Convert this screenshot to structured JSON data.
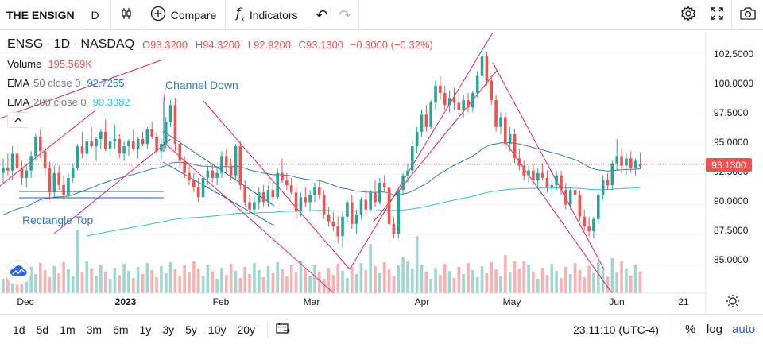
{
  "toolbar": {
    "symbol": "THE ENSIGN",
    "interval": "D",
    "compare_label": "Compare",
    "indicators_label": "Indicators",
    "icons": [
      "bar-chart-type-icon",
      "plus-circle-icon",
      "fx-icon",
      "undo-icon",
      "redo-icon",
      "gear-icon",
      "fullscreen-icon",
      "camera-icon"
    ]
  },
  "legend": {
    "symbol": "ENSG",
    "interval": "1D",
    "exchange": "NASDAQ",
    "o_label": "O",
    "o_value": "93.3200",
    "h_label": "H",
    "h_value": "94.3200",
    "l_label": "L",
    "l_value": "92.9200",
    "c_label": "C",
    "c_value": "93.1300",
    "change": "−0.3000 (−0.32%)",
    "volume_label": "Volume",
    "volume_value": "195.569K",
    "ema50_label": "EMA",
    "ema50_params": "50 close 0",
    "ema50_value": "92.7255",
    "ema200_label": "EMA",
    "ema200_params": "200 close 0",
    "ema200_value": "90.3082"
  },
  "annotations": {
    "channel_down": "Channel Down",
    "rectangle_top": "Rectangle Top"
  },
  "price_axis": {
    "ticks": [
      "102.5000",
      "100.0000",
      "97.5000",
      "95.0000",
      "92.5000",
      "90.0000",
      "87.5000",
      "85.0000"
    ],
    "last_price": "93.1300"
  },
  "time_axis": {
    "ticks": [
      "Dec",
      "2023",
      "Feb",
      "Mar",
      "Apr",
      "May",
      "Jun",
      "21"
    ]
  },
  "bottom": {
    "ranges": [
      "1d",
      "5d",
      "1m",
      "3m",
      "6m",
      "1y",
      "3y",
      "5y",
      "10y",
      "20y"
    ],
    "time": "23:11:10 (UTC-4)",
    "percent": "%",
    "log": "log",
    "auto": "auto"
  },
  "colors": {
    "up": "#26a69a",
    "down": "#ef5350",
    "ema50": "#2a7fc1",
    "ema200": "#26c6da",
    "pattern_pink": "#e91e63",
    "pattern_blue": "#1565c0",
    "accent": "#2962ff"
  },
  "chart_data": {
    "type": "candlestick",
    "y_range": [
      82.7,
      104.3
    ],
    "last_close": 93.13,
    "candles_approx": [
      {
        "o": 92.6,
        "h": 93.8,
        "l": 91.8,
        "c": 93.0
      },
      {
        "o": 93.0,
        "h": 94.2,
        "l": 92.4,
        "c": 92.8
      },
      {
        "o": 92.8,
        "h": 94.8,
        "l": 92.0,
        "c": 94.2
      },
      {
        "o": 94.2,
        "h": 95.0,
        "l": 92.6,
        "c": 93.0
      },
      {
        "o": 93.0,
        "h": 93.6,
        "l": 91.6,
        "c": 92.2
      },
      {
        "o": 92.2,
        "h": 93.4,
        "l": 91.4,
        "c": 92.8
      },
      {
        "o": 92.8,
        "h": 94.4,
        "l": 92.2,
        "c": 94.0
      },
      {
        "o": 94.0,
        "h": 95.8,
        "l": 93.6,
        "c": 95.6
      },
      {
        "o": 95.6,
        "h": 96.2,
        "l": 93.8,
        "c": 94.4
      },
      {
        "o": 94.4,
        "h": 94.8,
        "l": 92.4,
        "c": 93.0
      },
      {
        "o": 93.0,
        "h": 93.5,
        "l": 90.4,
        "c": 91.0
      },
      {
        "o": 91.0,
        "h": 93.2,
        "l": 90.6,
        "c": 92.6
      },
      {
        "o": 92.6,
        "h": 93.2,
        "l": 91.2,
        "c": 91.6
      },
      {
        "o": 91.6,
        "h": 92.4,
        "l": 90.4,
        "c": 90.8
      },
      {
        "o": 90.8,
        "h": 92.6,
        "l": 90.6,
        "c": 92.2
      },
      {
        "o": 92.2,
        "h": 93.4,
        "l": 91.8,
        "c": 93.0
      },
      {
        "o": 93.0,
        "h": 95.0,
        "l": 92.8,
        "c": 94.8
      },
      {
        "o": 94.8,
        "h": 96.0,
        "l": 93.8,
        "c": 94.2
      },
      {
        "o": 94.2,
        "h": 95.4,
        "l": 93.4,
        "c": 95.2
      },
      {
        "o": 95.2,
        "h": 96.4,
        "l": 94.6,
        "c": 94.8
      },
      {
        "o": 94.8,
        "h": 95.6,
        "l": 93.6,
        "c": 95.4
      },
      {
        "o": 95.4,
        "h": 96.2,
        "l": 94.6,
        "c": 96.0
      },
      {
        "o": 96.0,
        "h": 97.0,
        "l": 94.4,
        "c": 94.6
      },
      {
        "o": 94.6,
        "h": 95.6,
        "l": 94.0,
        "c": 95.2
      },
      {
        "o": 95.2,
        "h": 96.6,
        "l": 94.6,
        "c": 95.4
      },
      {
        "o": 95.4,
        "h": 95.8,
        "l": 93.8,
        "c": 94.2
      },
      {
        "o": 94.2,
        "h": 95.2,
        "l": 93.6,
        "c": 94.8
      },
      {
        "o": 94.8,
        "h": 95.4,
        "l": 94.0,
        "c": 95.2
      },
      {
        "o": 95.2,
        "h": 96.2,
        "l": 94.4,
        "c": 94.6
      },
      {
        "o": 94.6,
        "h": 95.6,
        "l": 93.8,
        "c": 95.4
      },
      {
        "o": 95.4,
        "h": 96.0,
        "l": 94.8,
        "c": 95.0
      },
      {
        "o": 95.0,
        "h": 96.4,
        "l": 94.6,
        "c": 96.2
      },
      {
        "o": 96.2,
        "h": 96.8,
        "l": 95.4,
        "c": 95.6
      },
      {
        "o": 95.6,
        "h": 96.0,
        "l": 94.2,
        "c": 94.4
      },
      {
        "o": 94.4,
        "h": 95.4,
        "l": 93.6,
        "c": 95.0
      },
      {
        "o": 95.0,
        "h": 97.2,
        "l": 94.6,
        "c": 96.8
      },
      {
        "o": 96.8,
        "h": 98.6,
        "l": 96.4,
        "c": 98.2
      },
      {
        "o": 98.2,
        "h": 98.8,
        "l": 94.4,
        "c": 95.0
      },
      {
        "o": 95.0,
        "h": 95.6,
        "l": 93.0,
        "c": 93.6
      },
      {
        "o": 93.6,
        "h": 94.0,
        "l": 92.2,
        "c": 92.6
      },
      {
        "o": 92.6,
        "h": 93.2,
        "l": 91.6,
        "c": 92.0
      },
      {
        "o": 92.0,
        "h": 92.6,
        "l": 91.0,
        "c": 91.4
      },
      {
        "o": 91.4,
        "h": 92.2,
        "l": 90.2,
        "c": 90.6
      },
      {
        "o": 90.6,
        "h": 92.6,
        "l": 90.2,
        "c": 92.2
      },
      {
        "o": 92.2,
        "h": 93.2,
        "l": 91.6,
        "c": 92.8
      },
      {
        "o": 92.8,
        "h": 93.4,
        "l": 91.8,
        "c": 92.2
      },
      {
        "o": 92.2,
        "h": 93.0,
        "l": 91.6,
        "c": 92.6
      },
      {
        "o": 92.6,
        "h": 94.4,
        "l": 92.2,
        "c": 94.0
      },
      {
        "o": 94.0,
        "h": 94.6,
        "l": 92.6,
        "c": 93.2
      },
      {
        "o": 93.2,
        "h": 93.8,
        "l": 92.0,
        "c": 92.4
      },
      {
        "o": 92.4,
        "h": 95.0,
        "l": 92.0,
        "c": 94.8
      },
      {
        "o": 94.8,
        "h": 95.2,
        "l": 91.2,
        "c": 91.6
      },
      {
        "o": 91.6,
        "h": 92.0,
        "l": 89.8,
        "c": 90.2
      },
      {
        "o": 90.2,
        "h": 90.8,
        "l": 89.2,
        "c": 89.6
      },
      {
        "o": 89.6,
        "h": 90.6,
        "l": 89.0,
        "c": 90.2
      },
      {
        "o": 90.2,
        "h": 91.4,
        "l": 89.6,
        "c": 91.0
      },
      {
        "o": 91.0,
        "h": 91.6,
        "l": 89.8,
        "c": 90.2
      },
      {
        "o": 90.2,
        "h": 91.6,
        "l": 89.8,
        "c": 91.2
      },
      {
        "o": 91.2,
        "h": 91.8,
        "l": 90.2,
        "c": 90.6
      },
      {
        "o": 90.6,
        "h": 93.0,
        "l": 90.4,
        "c": 92.6
      },
      {
        "o": 92.6,
        "h": 93.8,
        "l": 91.8,
        "c": 92.0
      },
      {
        "o": 92.0,
        "h": 92.6,
        "l": 91.2,
        "c": 91.6
      },
      {
        "o": 91.6,
        "h": 92.2,
        "l": 90.8,
        "c": 91.0
      },
      {
        "o": 91.0,
        "h": 91.6,
        "l": 88.8,
        "c": 89.4
      },
      {
        "o": 89.4,
        "h": 91.0,
        "l": 89.0,
        "c": 90.6
      },
      {
        "o": 90.6,
        "h": 91.4,
        "l": 89.8,
        "c": 90.2
      },
      {
        "o": 90.2,
        "h": 91.2,
        "l": 89.4,
        "c": 90.8
      },
      {
        "o": 90.8,
        "h": 91.8,
        "l": 90.2,
        "c": 91.4
      },
      {
        "o": 91.4,
        "h": 92.0,
        "l": 90.4,
        "c": 90.8
      },
      {
        "o": 90.8,
        "h": 91.2,
        "l": 88.8,
        "c": 89.2
      },
      {
        "o": 89.2,
        "h": 89.8,
        "l": 88.2,
        "c": 88.6
      },
      {
        "o": 88.6,
        "h": 89.4,
        "l": 87.8,
        "c": 88.2
      },
      {
        "o": 88.2,
        "h": 89.0,
        "l": 86.8,
        "c": 87.4
      },
      {
        "o": 87.4,
        "h": 89.4,
        "l": 86.4,
        "c": 89.0
      },
      {
        "o": 89.0,
        "h": 90.4,
        "l": 88.6,
        "c": 90.2
      },
      {
        "o": 90.2,
        "h": 90.8,
        "l": 88.0,
        "c": 88.4
      },
      {
        "o": 88.4,
        "h": 89.6,
        "l": 87.6,
        "c": 89.2
      },
      {
        "o": 89.2,
        "h": 90.6,
        "l": 88.8,
        "c": 90.4
      },
      {
        "o": 90.4,
        "h": 91.2,
        "l": 89.2,
        "c": 89.6
      },
      {
        "o": 89.6,
        "h": 91.2,
        "l": 89.4,
        "c": 91.0
      },
      {
        "o": 91.0,
        "h": 92.0,
        "l": 89.8,
        "c": 90.2
      },
      {
        "o": 90.2,
        "h": 92.2,
        "l": 90.0,
        "c": 91.8
      },
      {
        "o": 91.8,
        "h": 92.4,
        "l": 91.0,
        "c": 91.4
      },
      {
        "o": 91.4,
        "h": 91.8,
        "l": 88.0,
        "c": 88.4
      },
      {
        "o": 88.4,
        "h": 89.0,
        "l": 87.2,
        "c": 87.6
      },
      {
        "o": 87.6,
        "h": 91.4,
        "l": 87.2,
        "c": 91.2
      },
      {
        "o": 91.2,
        "h": 92.6,
        "l": 90.8,
        "c": 92.4
      },
      {
        "o": 92.4,
        "h": 93.4,
        "l": 91.8,
        "c": 92.8
      },
      {
        "o": 92.8,
        "h": 95.2,
        "l": 92.4,
        "c": 94.8
      },
      {
        "o": 94.8,
        "h": 96.4,
        "l": 94.2,
        "c": 96.0
      },
      {
        "o": 96.0,
        "h": 97.8,
        "l": 95.6,
        "c": 97.4
      },
      {
        "o": 97.4,
        "h": 98.2,
        "l": 96.0,
        "c": 96.4
      },
      {
        "o": 96.4,
        "h": 98.6,
        "l": 96.2,
        "c": 98.4
      },
      {
        "o": 98.4,
        "h": 100.2,
        "l": 97.8,
        "c": 99.8
      },
      {
        "o": 99.8,
        "h": 100.6,
        "l": 98.6,
        "c": 99.2
      },
      {
        "o": 99.2,
        "h": 99.8,
        "l": 97.8,
        "c": 98.2
      },
      {
        "o": 98.2,
        "h": 99.4,
        "l": 97.6,
        "c": 98.8
      },
      {
        "o": 98.8,
        "h": 99.6,
        "l": 97.8,
        "c": 98.4
      },
      {
        "o": 98.4,
        "h": 99.2,
        "l": 97.4,
        "c": 97.8
      },
      {
        "o": 97.8,
        "h": 99.0,
        "l": 97.2,
        "c": 98.6
      },
      {
        "o": 98.6,
        "h": 99.2,
        "l": 97.6,
        "c": 98.0
      },
      {
        "o": 98.0,
        "h": 99.4,
        "l": 97.6,
        "c": 99.2
      },
      {
        "o": 99.2,
        "h": 101.0,
        "l": 98.8,
        "c": 100.6
      },
      {
        "o": 100.6,
        "h": 102.8,
        "l": 100.2,
        "c": 102.2
      },
      {
        "o": 102.2,
        "h": 102.6,
        "l": 99.8,
        "c": 100.2
      },
      {
        "o": 100.2,
        "h": 100.6,
        "l": 98.2,
        "c": 98.6
      },
      {
        "o": 98.6,
        "h": 99.0,
        "l": 96.0,
        "c": 96.4
      },
      {
        "o": 96.4,
        "h": 97.6,
        "l": 95.8,
        "c": 97.2
      },
      {
        "o": 97.2,
        "h": 97.6,
        "l": 94.6,
        "c": 95.0
      },
      {
        "o": 95.0,
        "h": 96.4,
        "l": 94.4,
        "c": 95.8
      },
      {
        "o": 95.8,
        "h": 96.2,
        "l": 93.4,
        "c": 93.8
      },
      {
        "o": 93.8,
        "h": 94.6,
        "l": 92.8,
        "c": 93.2
      },
      {
        "o": 93.2,
        "h": 93.6,
        "l": 92.0,
        "c": 92.4
      },
      {
        "o": 92.4,
        "h": 93.2,
        "l": 91.8,
        "c": 92.8
      },
      {
        "o": 92.8,
        "h": 93.4,
        "l": 91.6,
        "c": 92.0
      },
      {
        "o": 92.0,
        "h": 93.0,
        "l": 91.4,
        "c": 92.6
      },
      {
        "o": 92.6,
        "h": 93.4,
        "l": 92.0,
        "c": 92.2
      },
      {
        "o": 92.2,
        "h": 92.8,
        "l": 91.0,
        "c": 91.4
      },
      {
        "o": 91.4,
        "h": 92.0,
        "l": 90.8,
        "c": 91.6
      },
      {
        "o": 91.6,
        "h": 92.8,
        "l": 91.2,
        "c": 92.4
      },
      {
        "o": 92.4,
        "h": 92.8,
        "l": 90.8,
        "c": 91.2
      },
      {
        "o": 91.2,
        "h": 91.8,
        "l": 89.6,
        "c": 90.0
      },
      {
        "o": 90.0,
        "h": 91.4,
        "l": 89.6,
        "c": 91.2
      },
      {
        "o": 91.2,
        "h": 91.6,
        "l": 90.4,
        "c": 90.8
      },
      {
        "o": 90.8,
        "h": 91.2,
        "l": 88.6,
        "c": 89.0
      },
      {
        "o": 89.0,
        "h": 89.6,
        "l": 87.8,
        "c": 88.2
      },
      {
        "o": 88.2,
        "h": 89.0,
        "l": 87.4,
        "c": 87.8
      },
      {
        "o": 87.8,
        "h": 89.0,
        "l": 87.2,
        "c": 88.8
      },
      {
        "o": 88.8,
        "h": 91.0,
        "l": 88.4,
        "c": 90.8
      },
      {
        "o": 90.8,
        "h": 92.4,
        "l": 90.4,
        "c": 92.0
      },
      {
        "o": 92.0,
        "h": 92.6,
        "l": 91.2,
        "c": 91.6
      },
      {
        "o": 91.6,
        "h": 93.6,
        "l": 91.2,
        "c": 93.4
      },
      {
        "o": 93.4,
        "h": 95.4,
        "l": 92.8,
        "c": 94.0
      },
      {
        "o": 94.0,
        "h": 94.6,
        "l": 92.6,
        "c": 93.2
      },
      {
        "o": 93.2,
        "h": 94.2,
        "l": 92.4,
        "c": 93.8
      },
      {
        "o": 93.8,
        "h": 94.4,
        "l": 92.6,
        "c": 93.0
      },
      {
        "o": 93.0,
        "h": 93.8,
        "l": 92.4,
        "c": 93.6
      },
      {
        "o": 93.32,
        "h": 94.32,
        "l": 92.92,
        "c": 93.13
      }
    ]
  }
}
